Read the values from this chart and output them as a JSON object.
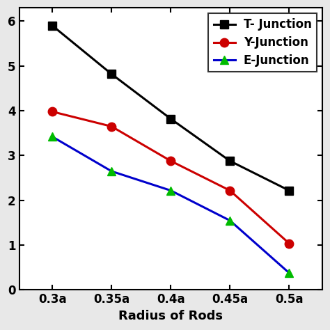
{
  "x_labels": [
    "0.3a",
    "0.35a",
    "0.4a",
    "0.45a",
    "0.5a"
  ],
  "x_values": [
    0.3,
    0.35,
    0.4,
    0.45,
    0.5
  ],
  "t_junction": [
    5.9,
    4.82,
    3.82,
    2.88,
    2.22
  ],
  "y_junction": [
    3.98,
    3.65,
    2.88,
    2.22,
    1.04
  ],
  "e_junction": [
    3.42,
    2.65,
    2.22,
    1.55,
    0.38
  ],
  "t_line_color": "#000000",
  "y_line_color": "#cc0000",
  "e_line_color": "#0000cc",
  "t_marker_color": "#000000",
  "y_marker_color": "#cc0000",
  "e_marker_color": "#00bb00",
  "xlabel": "Radius of Rods",
  "ylim": [
    0,
    6.3
  ],
  "yticks": [
    0,
    1,
    2,
    3,
    4,
    5,
    6
  ],
  "legend_labels": [
    "T- Junction",
    "Y-Junction",
    "E-Junction"
  ],
  "linewidth": 2.2,
  "markersize": 9,
  "fig_facecolor": "#e8e8e8",
  "axes_facecolor": "#ffffff"
}
